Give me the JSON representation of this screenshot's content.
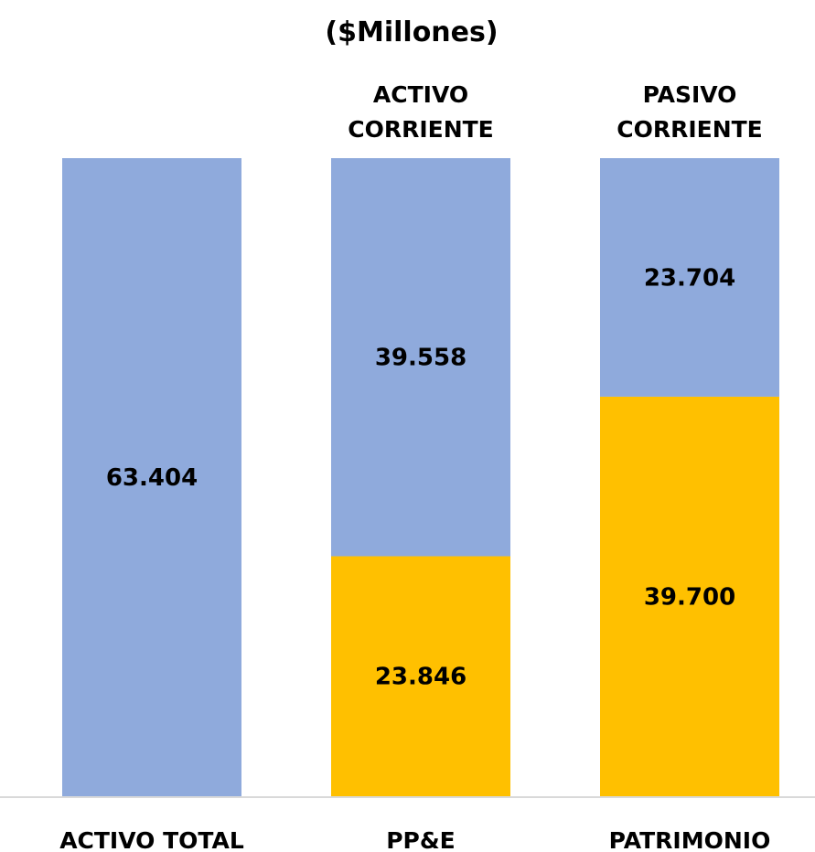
{
  "chart_data": {
    "type": "bar",
    "stacked": true,
    "title": "($Millones)",
    "categories": [
      "ACTIVO TOTAL",
      "PP&E",
      "PATRIMONIO"
    ],
    "top_labels": [
      "",
      "ACTIVO\nCORRIENTE",
      "PASIVO\nCORRIENTE"
    ],
    "series": [
      {
        "color": "#FFC000",
        "values": [
          0,
          23846,
          39700
        ]
      },
      {
        "color": "#8FAADC",
        "values": [
          63404,
          39558,
          23704
        ]
      }
    ],
    "data_labels": [
      [
        "",
        "23.846",
        "39.700"
      ],
      [
        "63.404",
        "39.558",
        "23.704"
      ]
    ],
    "ylim": [
      0,
      63404
    ],
    "xlabel": "",
    "ylabel": "",
    "grid": false,
    "legend": "none",
    "axis_color": "#D9D9D9"
  }
}
